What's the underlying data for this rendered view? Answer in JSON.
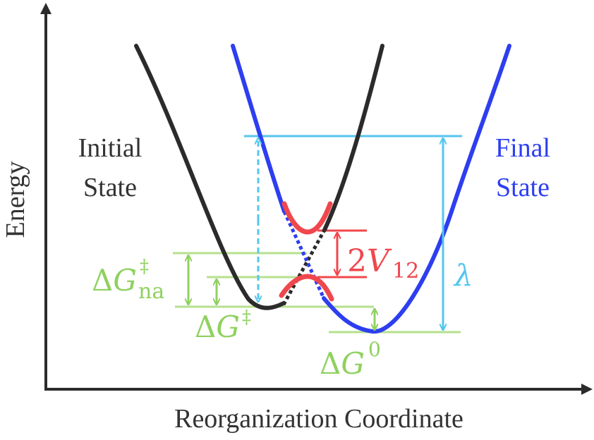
{
  "axes": {
    "y_label": "Energy",
    "x_label": "Reorganization Coordinate"
  },
  "states": {
    "initial": {
      "line1": "Initial",
      "line2": "State"
    },
    "final": {
      "line1": "Final",
      "line2": "State"
    }
  },
  "labels": {
    "delta": "Δ",
    "g": "G",
    "dagger": "‡",
    "na": "na",
    "zero": "0",
    "coupling_prefix": "2",
    "coupling_var": "V",
    "coupling_sub": "12",
    "lambda": "λ"
  },
  "colors": {
    "initial_curve": "#2b2b2b",
    "final_curve": "#2d3ef0",
    "coupling": "#f0474d",
    "energy_markers": "#8fd15f",
    "reorganization": "#55c6ee",
    "axis": "#2b2b2b",
    "text": "#333333"
  }
}
